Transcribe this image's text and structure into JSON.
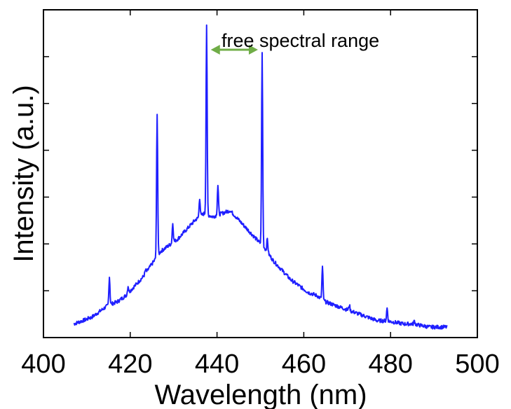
{
  "chart_data": {
    "type": "line",
    "title": "",
    "xlabel": "Wavelength (nm)",
    "ylabel": "Intensity (a.u.)",
    "xlim": [
      400,
      500
    ],
    "ylim": [
      0,
      1.0
    ],
    "x_ticks": [
      "400",
      "420",
      "440",
      "460",
      "480",
      "500"
    ],
    "y_tick_labels_shown": false,
    "y_tick_count": 6,
    "grid": false,
    "legend": null,
    "line_color": "#1f1fff",
    "arrow_color": "#70ad47",
    "series": [
      {
        "baseline": [
          [
            407,
            0.03
          ],
          [
            409,
            0.04
          ],
          [
            411,
            0.05
          ],
          [
            413,
            0.07
          ],
          [
            415,
            0.09
          ],
          [
            417,
            0.1
          ],
          [
            419,
            0.12
          ],
          [
            421,
            0.15
          ],
          [
            423,
            0.18
          ],
          [
            425,
            0.22
          ],
          [
            427,
            0.26
          ],
          [
            429,
            0.28
          ],
          [
            431,
            0.3
          ],
          [
            433,
            0.33
          ],
          [
            435,
            0.36
          ],
          [
            437,
            0.38
          ],
          [
            439,
            0.37
          ],
          [
            441,
            0.38
          ],
          [
            443,
            0.39
          ],
          [
            445,
            0.36
          ],
          [
            447,
            0.33
          ],
          [
            449,
            0.3
          ],
          [
            451,
            0.27
          ],
          [
            453,
            0.23
          ],
          [
            455,
            0.2
          ],
          [
            457,
            0.17
          ],
          [
            459,
            0.15
          ],
          [
            461,
            0.13
          ],
          [
            463,
            0.12
          ],
          [
            465,
            0.1
          ],
          [
            467,
            0.09
          ],
          [
            469,
            0.08
          ],
          [
            471,
            0.07
          ],
          [
            473,
            0.06
          ],
          [
            475,
            0.05
          ],
          [
            477,
            0.04
          ],
          [
            479,
            0.04
          ],
          [
            481,
            0.035
          ],
          [
            483,
            0.03
          ],
          [
            485,
            0.03
          ],
          [
            487,
            0.025
          ],
          [
            489,
            0.02
          ],
          [
            491,
            0.02
          ],
          [
            493,
            0.02
          ]
        ],
        "peaks": [
          {
            "x": 410.5,
            "y": 0.05
          },
          {
            "x": 415.2,
            "y": 0.18
          },
          {
            "x": 419.5,
            "y": 0.15
          },
          {
            "x": 423.5,
            "y": 0.2
          },
          {
            "x": 426.2,
            "y": 0.7
          },
          {
            "x": 429.8,
            "y": 0.35
          },
          {
            "x": 436.0,
            "y": 0.43
          },
          {
            "x": 437.6,
            "y": 0.98
          },
          {
            "x": 440.2,
            "y": 0.47
          },
          {
            "x": 450.4,
            "y": 0.89
          },
          {
            "x": 451.6,
            "y": 0.3
          },
          {
            "x": 464.3,
            "y": 0.21
          },
          {
            "x": 470.5,
            "y": 0.09
          },
          {
            "x": 479.2,
            "y": 0.08
          },
          {
            "x": 485.5,
            "y": 0.04
          }
        ]
      }
    ],
    "annotation": {
      "text": "free spectral range",
      "from_x": 437.6,
      "to_x": 450.4,
      "y": 0.9
    }
  }
}
